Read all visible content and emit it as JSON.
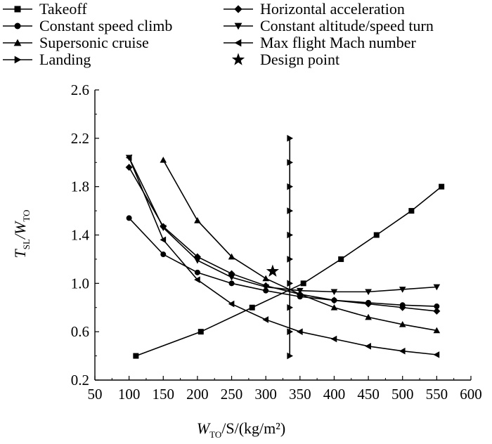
{
  "chart_data": {
    "type": "line",
    "xlabel": {
      "main": "W",
      "sub": "TO",
      "rest": "/S/(kg/m²)"
    },
    "ylabel": {
      "main1": "T",
      "sub1": "SL",
      "mid": "/W",
      "sub2": "TO"
    },
    "xlim": [
      50,
      600
    ],
    "ylim": [
      0.2,
      2.6
    ],
    "xticks": [
      "50",
      "100",
      "150",
      "200",
      "250",
      "300",
      "350",
      "400",
      "450",
      "500",
      "550",
      "600"
    ],
    "yticks": [
      "0.2",
      "0.6",
      "1.0",
      "1.4",
      "1.8",
      "2.2",
      "2.6"
    ],
    "grid": false,
    "legend_position": "top",
    "series": [
      {
        "name": "Takeoff",
        "marker": "square",
        "points": [
          [
            110,
            0.4
          ],
          [
            205,
            0.6
          ],
          [
            280,
            0.8
          ],
          [
            355,
            1.0
          ],
          [
            410,
            1.2
          ],
          [
            462,
            1.4
          ],
          [
            513,
            1.6
          ],
          [
            557,
            1.8
          ]
        ]
      },
      {
        "name": "Constant speed climb",
        "marker": "circle",
        "points": [
          [
            100,
            1.54
          ],
          [
            150,
            1.24
          ],
          [
            200,
            1.09
          ],
          [
            250,
            1.0
          ],
          [
            300,
            0.94
          ],
          [
            350,
            0.89
          ],
          [
            400,
            0.86
          ],
          [
            450,
            0.84
          ],
          [
            500,
            0.82
          ],
          [
            550,
            0.81
          ]
        ]
      },
      {
        "name": "Supersonic cruise",
        "marker": "triangle-up",
        "points": [
          [
            150,
            2.02
          ],
          [
            200,
            1.52
          ],
          [
            250,
            1.22
          ],
          [
            300,
            1.04
          ],
          [
            350,
            0.91
          ],
          [
            400,
            0.8
          ],
          [
            450,
            0.72
          ],
          [
            500,
            0.66
          ],
          [
            550,
            0.61
          ]
        ]
      },
      {
        "name": "Landing",
        "marker": "triangle-right",
        "points": [
          [
            335,
            0.4
          ],
          [
            335,
            0.6
          ],
          [
            335,
            0.8
          ],
          [
            335,
            1.0
          ],
          [
            335,
            1.2
          ],
          [
            335,
            1.4
          ],
          [
            335,
            1.6
          ],
          [
            335,
            1.8
          ],
          [
            335,
            2.0
          ],
          [
            335,
            2.2
          ]
        ]
      },
      {
        "name": "Horizontal acceleration",
        "marker": "diamond",
        "points": [
          [
            100,
            1.96
          ],
          [
            150,
            1.47
          ],
          [
            200,
            1.22
          ],
          [
            250,
            1.08
          ],
          [
            300,
            0.98
          ],
          [
            350,
            0.91
          ],
          [
            400,
            0.86
          ],
          [
            450,
            0.83
          ],
          [
            500,
            0.8
          ],
          [
            550,
            0.77
          ]
        ]
      },
      {
        "name": "Constant altitude/speed turn",
        "marker": "triangle-down",
        "points": [
          [
            100,
            2.04
          ],
          [
            150,
            1.46
          ],
          [
            200,
            1.19
          ],
          [
            250,
            1.05
          ],
          [
            300,
            0.97
          ],
          [
            350,
            0.94
          ],
          [
            400,
            0.93
          ],
          [
            450,
            0.93
          ],
          [
            500,
            0.95
          ],
          [
            550,
            0.97
          ]
        ]
      },
      {
        "name": "Max flight Mach number",
        "marker": "triangle-left",
        "points": [
          [
            100,
            2.04
          ],
          [
            150,
            1.36
          ],
          [
            200,
            1.03
          ],
          [
            250,
            0.83
          ],
          [
            300,
            0.7
          ],
          [
            350,
            0.6
          ],
          [
            400,
            0.54
          ],
          [
            450,
            0.48
          ],
          [
            500,
            0.44
          ],
          [
            550,
            0.41
          ]
        ]
      },
      {
        "name": "Design point",
        "marker": "star",
        "points": [
          [
            310,
            1.1
          ]
        ]
      }
    ]
  }
}
